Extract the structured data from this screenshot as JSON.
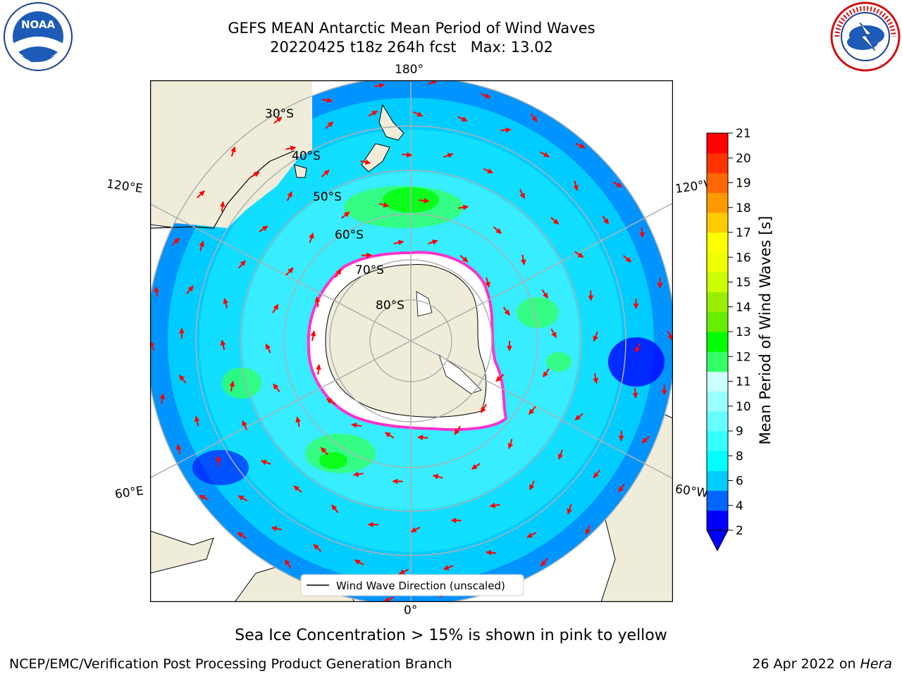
{
  "header": {
    "title_line1": "GEFS MEAN Antarctic Mean Period of Wind Waves",
    "title_line2": "20220425 t18z 264h fcst   Max: 13.02"
  },
  "logos": {
    "left": {
      "text": "NOAA",
      "ring_text_top": "NATIONAL OCEANIC AND ATMOSPHERIC ADMINISTRATION",
      "ring_text_bottom": "U.S. DEPARTMENT OF COMMERCE"
    },
    "right": {
      "ring_text": "NATIONAL WEATHER SERVICE"
    }
  },
  "map": {
    "lon_labels": {
      "top": "180°",
      "bottom": "0°",
      "left_upper": "120°E",
      "left_lower": "60°E",
      "right_upper": "120°W",
      "right_lower": "60°W"
    },
    "lat_labels": [
      "30°S",
      "40°S",
      "50°S",
      "60°S",
      "70°S",
      "80°S"
    ],
    "legend": "Wind Wave Direction (unscaled)",
    "colors": {
      "land": "#efedda",
      "ice": "#ffffff",
      "ice_edge": "#ff33cc",
      "arrow": "#ff0000",
      "grid": "#b0b0b0"
    }
  },
  "colorbar": {
    "label": "Mean Period of Wind Waves [s]",
    "ticks": [
      "21",
      "20",
      "19",
      "18",
      "17",
      "16",
      "15",
      "14",
      "13",
      "12",
      "11",
      "10",
      "9",
      "8",
      "6",
      "4",
      "2"
    ],
    "levels": [
      2,
      3,
      4,
      5,
      6,
      7,
      8,
      9,
      10,
      11,
      12,
      13,
      14,
      15,
      16,
      17,
      18,
      19,
      20,
      21
    ],
    "colors": [
      "#0000ff",
      "#0066ff",
      "#00ccff",
      "#00ffff",
      "#33ffff",
      "#66ffff",
      "#99ffff",
      "#ccffff",
      "#33ff66",
      "#00ff00",
      "#66ee00",
      "#99ee00",
      "#ccff00",
      "#eeff00",
      "#ffff00",
      "#ffcc00",
      "#ff9900",
      "#ff6600",
      "#ff3300",
      "#ff0000"
    ],
    "under_color": "#0000ff"
  },
  "footer": {
    "caption": "Sea Ice Concentration > 15% is shown in pink to yellow",
    "left": "NCEP/EMC/Verification Post Processing Product Generation Branch",
    "right_prefix": "26 Apr 2022 on ",
    "right_host": "Hera"
  }
}
